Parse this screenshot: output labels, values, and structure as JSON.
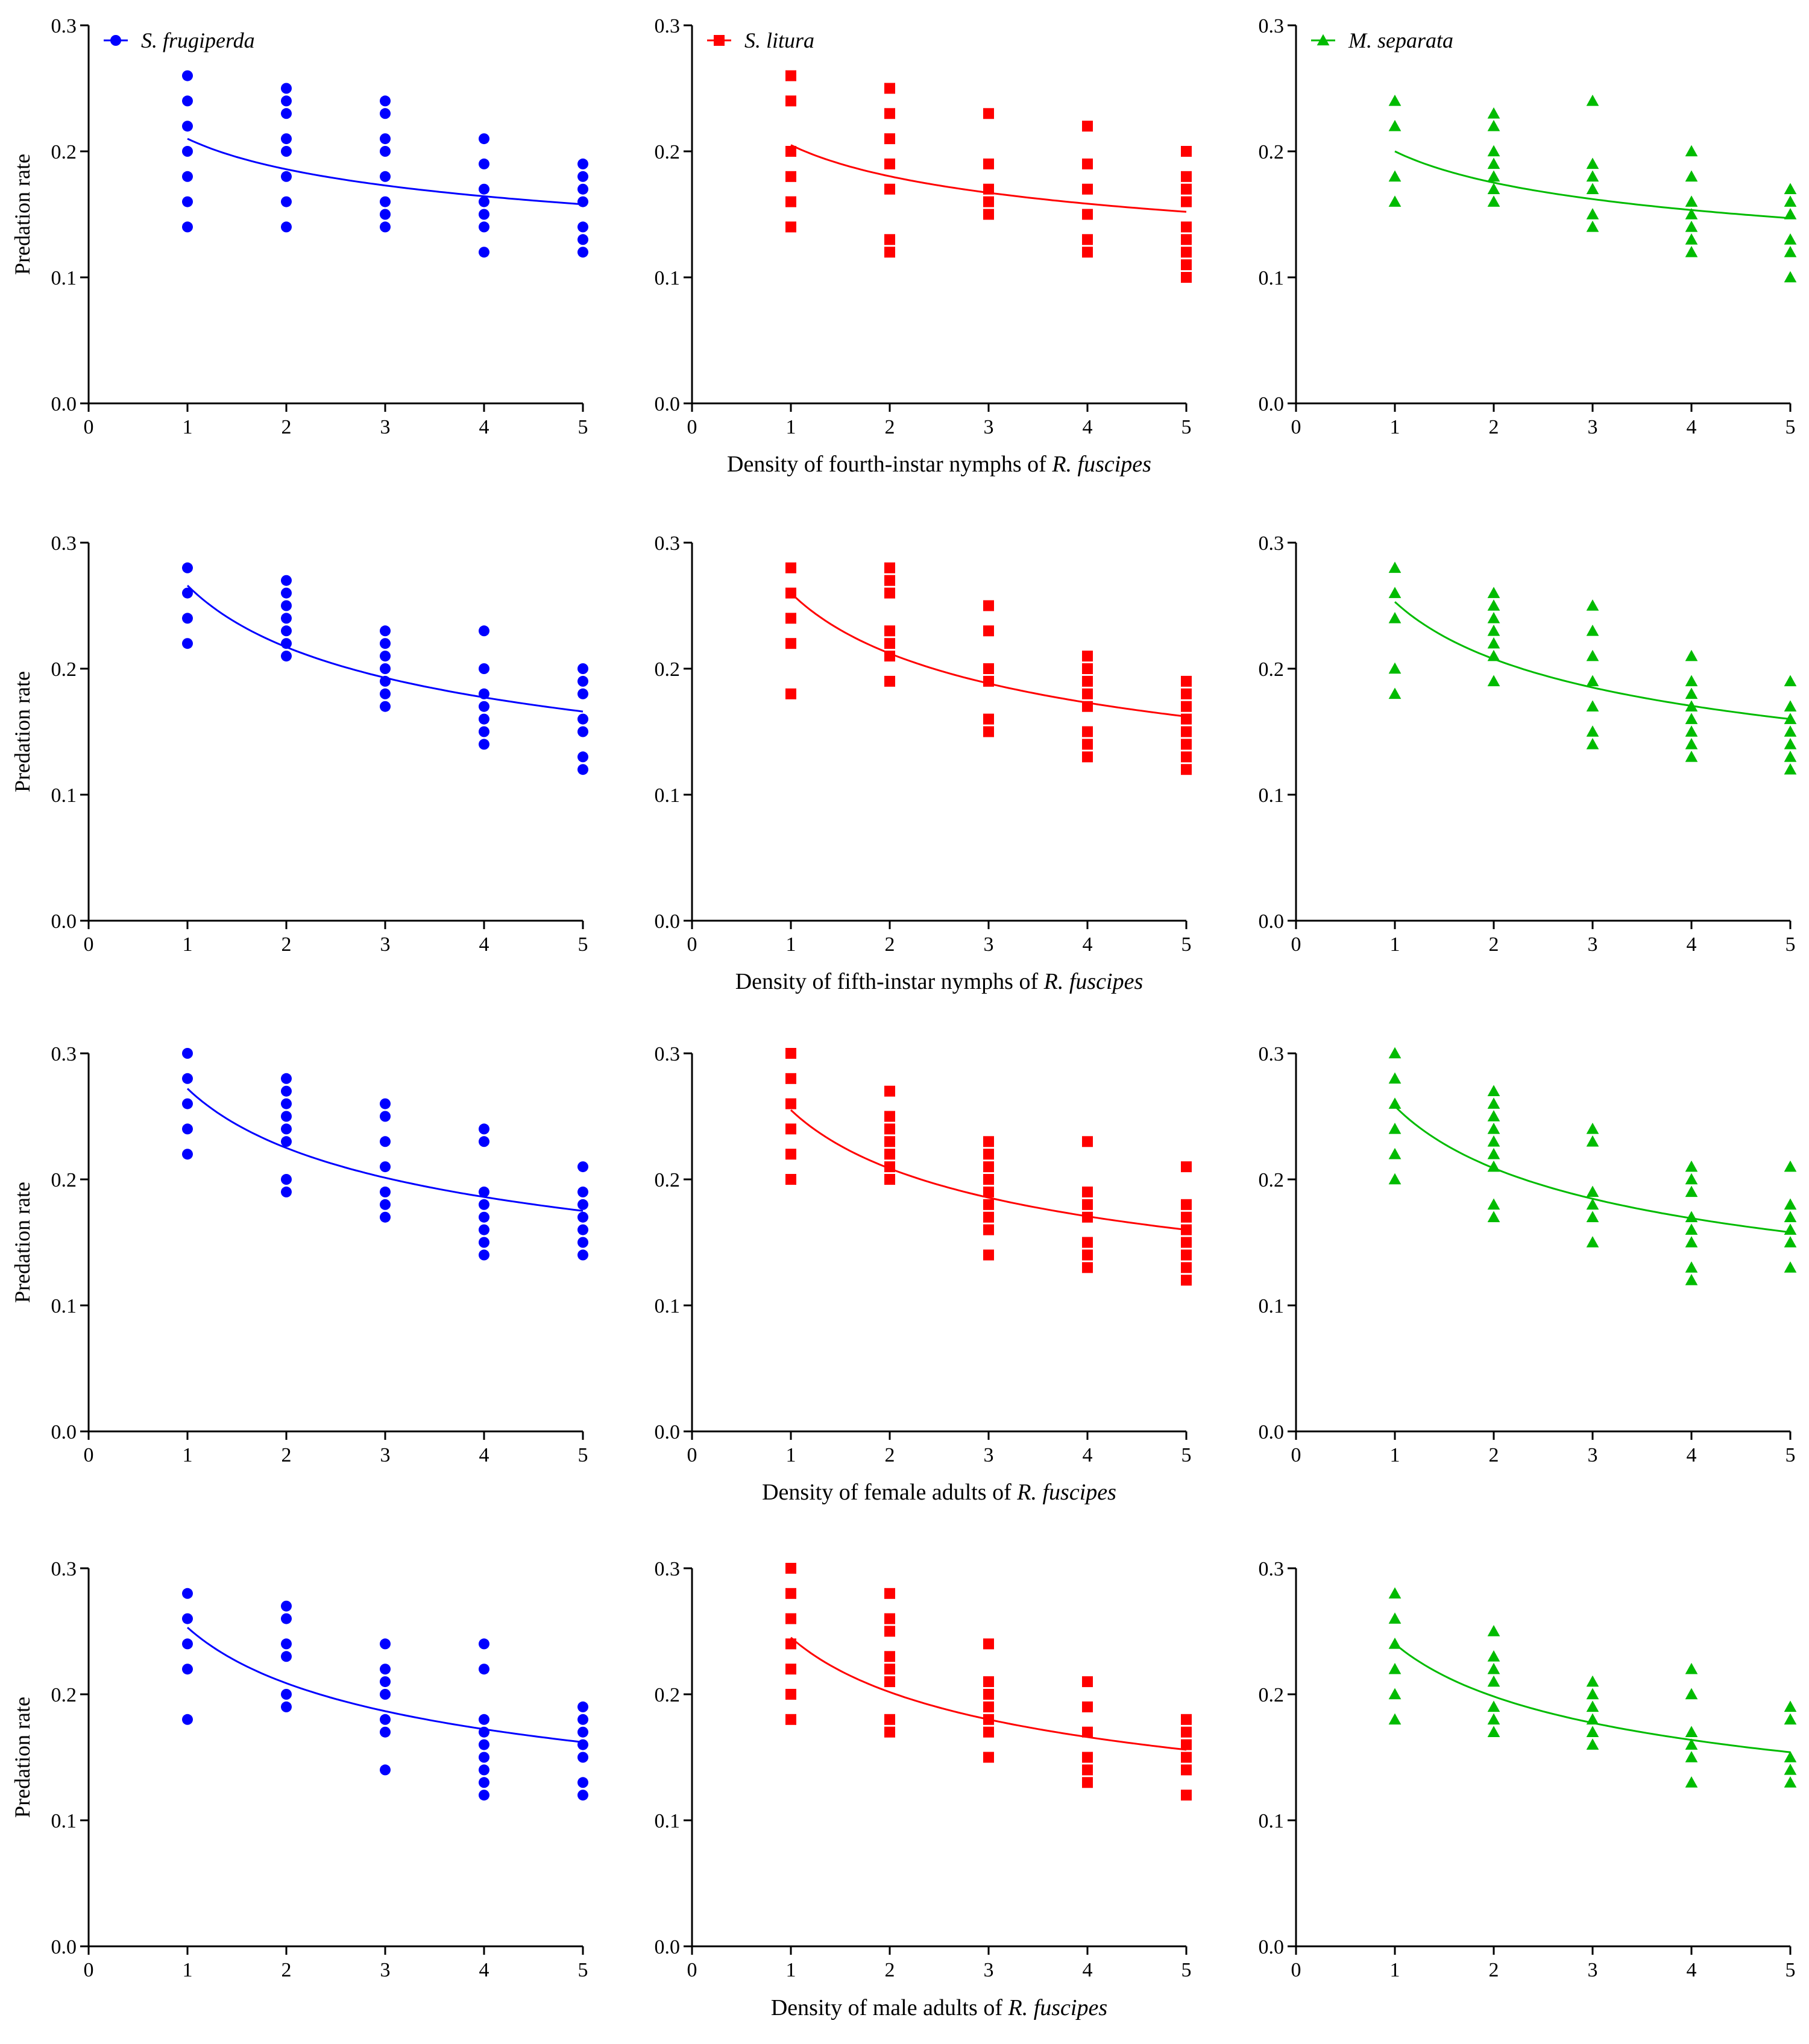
{
  "species": [
    {
      "name": "S. frugiperda",
      "color": "#0000ff",
      "marker": "circle"
    },
    {
      "name": "S. litura",
      "color": "#ff0000",
      "marker": "square"
    },
    {
      "name": "M. separata",
      "color": "#00bb00",
      "marker": "triangle"
    }
  ],
  "row_labels": [
    {
      "prefix": "Density of fourth-instar nymphs of ",
      "italic": "R. fuscipes"
    },
    {
      "prefix": "Density of fifth-instar nymphs of ",
      "italic": "R. fuscipes"
    },
    {
      "prefix": "Density of female adults of ",
      "italic": "R. fuscipes"
    },
    {
      "prefix": "Density of male adults of ",
      "italic": "R. fuscipes"
    }
  ],
  "chart_data": [
    {
      "type": "scatter",
      "row": 0,
      "col": 0,
      "series": "S. frugiperda",
      "ylabel": "Predation rate",
      "xlim": [
        0,
        5
      ],
      "ylim": [
        0,
        0.3
      ],
      "xticks": [
        "0",
        "1",
        "2",
        "3",
        "4",
        "5"
      ],
      "yticks": [
        "0.0",
        "0.1",
        "0.2",
        "0.3"
      ],
      "points": [
        [
          1,
          [
            0.26,
            0.24,
            0.22,
            0.2,
            0.18,
            0.16,
            0.14
          ]
        ],
        [
          2,
          [
            0.25,
            0.24,
            0.23,
            0.21,
            0.2,
            0.18,
            0.16,
            0.14
          ]
        ],
        [
          3,
          [
            0.24,
            0.23,
            0.21,
            0.2,
            0.18,
            0.16,
            0.15,
            0.14
          ]
        ],
        [
          4,
          [
            0.21,
            0.19,
            0.17,
            0.16,
            0.15,
            0.14,
            0.12
          ]
        ],
        [
          5,
          [
            0.19,
            0.18,
            0.17,
            0.16,
            0.14,
            0.13,
            0.12
          ]
        ]
      ],
      "curve": [
        0.21,
        0.158
      ]
    },
    {
      "type": "scatter",
      "row": 0,
      "col": 1,
      "series": "S. litura",
      "ylabel": "",
      "xlim": [
        0,
        5
      ],
      "ylim": [
        0,
        0.3
      ],
      "xticks": [
        "0",
        "1",
        "2",
        "3",
        "4",
        "5"
      ],
      "yticks": [
        "0.0",
        "0.1",
        "0.2",
        "0.3"
      ],
      "points": [
        [
          1,
          [
            0.26,
            0.24,
            0.2,
            0.18,
            0.16,
            0.14
          ]
        ],
        [
          2,
          [
            0.25,
            0.23,
            0.21,
            0.19,
            0.17,
            0.13,
            0.12
          ]
        ],
        [
          3,
          [
            0.23,
            0.19,
            0.17,
            0.16,
            0.15
          ]
        ],
        [
          4,
          [
            0.22,
            0.19,
            0.17,
            0.15,
            0.13,
            0.12
          ]
        ],
        [
          5,
          [
            0.2,
            0.18,
            0.17,
            0.16,
            0.14,
            0.13,
            0.12,
            0.11,
            0.1
          ]
        ]
      ],
      "curve": [
        0.205,
        0.152
      ]
    },
    {
      "type": "scatter",
      "row": 0,
      "col": 2,
      "series": "M. separata",
      "ylabel": "",
      "xlim": [
        0,
        5
      ],
      "ylim": [
        0,
        0.3
      ],
      "xticks": [
        "0",
        "1",
        "2",
        "3",
        "4",
        "5"
      ],
      "yticks": [
        "0.0",
        "0.1",
        "0.2",
        "0.3"
      ],
      "points": [
        [
          1,
          [
            0.24,
            0.22,
            0.18,
            0.16
          ]
        ],
        [
          2,
          [
            0.23,
            0.22,
            0.2,
            0.19,
            0.18,
            0.17,
            0.16
          ]
        ],
        [
          3,
          [
            0.24,
            0.19,
            0.18,
            0.17,
            0.15,
            0.14
          ]
        ],
        [
          4,
          [
            0.2,
            0.18,
            0.16,
            0.15,
            0.14,
            0.13,
            0.12
          ]
        ],
        [
          5,
          [
            0.17,
            0.16,
            0.15,
            0.13,
            0.12,
            0.1
          ]
        ]
      ],
      "curve": [
        0.2,
        0.147
      ]
    },
    {
      "type": "scatter",
      "row": 1,
      "col": 0,
      "series": "S. frugiperda",
      "ylabel": "Predation rate",
      "xlim": [
        0,
        5
      ],
      "ylim": [
        0,
        0.3
      ],
      "xticks": [
        "0",
        "1",
        "2",
        "3",
        "4",
        "5"
      ],
      "yticks": [
        "0.0",
        "0.1",
        "0.2",
        "0.3"
      ],
      "points": [
        [
          1,
          [
            0.28,
            0.26,
            0.24,
            0.22
          ]
        ],
        [
          2,
          [
            0.27,
            0.26,
            0.25,
            0.24,
            0.23,
            0.22,
            0.21
          ]
        ],
        [
          3,
          [
            0.23,
            0.22,
            0.21,
            0.2,
            0.19,
            0.18,
            0.17
          ]
        ],
        [
          4,
          [
            0.23,
            0.2,
            0.18,
            0.17,
            0.16,
            0.15,
            0.14
          ]
        ],
        [
          5,
          [
            0.2,
            0.19,
            0.18,
            0.16,
            0.15,
            0.13,
            0.12
          ]
        ]
      ],
      "curve": [
        0.266,
        0.166
      ]
    },
    {
      "type": "scatter",
      "row": 1,
      "col": 1,
      "series": "S. litura",
      "ylabel": "",
      "xlim": [
        0,
        5
      ],
      "ylim": [
        0,
        0.3
      ],
      "xticks": [
        "0",
        "1",
        "2",
        "3",
        "4",
        "5"
      ],
      "yticks": [
        "0.0",
        "0.1",
        "0.2",
        "0.3"
      ],
      "points": [
        [
          1,
          [
            0.28,
            0.26,
            0.24,
            0.22,
            0.18
          ]
        ],
        [
          2,
          [
            0.28,
            0.27,
            0.26,
            0.23,
            0.22,
            0.21,
            0.19
          ]
        ],
        [
          3,
          [
            0.25,
            0.23,
            0.2,
            0.19,
            0.16,
            0.15
          ]
        ],
        [
          4,
          [
            0.21,
            0.2,
            0.19,
            0.18,
            0.17,
            0.15,
            0.14,
            0.13
          ]
        ],
        [
          5,
          [
            0.19,
            0.18,
            0.17,
            0.16,
            0.15,
            0.14,
            0.13,
            0.12
          ]
        ]
      ],
      "curve": [
        0.26,
        0.162
      ]
    },
    {
      "type": "scatter",
      "row": 1,
      "col": 2,
      "series": "M. separata",
      "ylabel": "",
      "xlim": [
        0,
        5
      ],
      "ylim": [
        0,
        0.3
      ],
      "xticks": [
        "0",
        "1",
        "2",
        "3",
        "4",
        "5"
      ],
      "yticks": [
        "0.0",
        "0.1",
        "0.2",
        "0.3"
      ],
      "points": [
        [
          1,
          [
            0.28,
            0.26,
            0.24,
            0.2,
            0.18
          ]
        ],
        [
          2,
          [
            0.26,
            0.25,
            0.24,
            0.23,
            0.22,
            0.21,
            0.19
          ]
        ],
        [
          3,
          [
            0.25,
            0.23,
            0.21,
            0.19,
            0.17,
            0.15,
            0.14
          ]
        ],
        [
          4,
          [
            0.21,
            0.19,
            0.18,
            0.17,
            0.16,
            0.15,
            0.14,
            0.13
          ]
        ],
        [
          5,
          [
            0.19,
            0.17,
            0.16,
            0.15,
            0.14,
            0.13,
            0.12
          ]
        ]
      ],
      "curve": [
        0.253,
        0.16
      ]
    },
    {
      "type": "scatter",
      "row": 2,
      "col": 0,
      "series": "S. frugiperda",
      "ylabel": "Predation rate",
      "xlim": [
        0,
        5
      ],
      "ylim": [
        0,
        0.3
      ],
      "xticks": [
        "0",
        "1",
        "2",
        "3",
        "4",
        "5"
      ],
      "yticks": [
        "0.0",
        "0.1",
        "0.2",
        "0.3"
      ],
      "points": [
        [
          1,
          [
            0.3,
            0.28,
            0.26,
            0.24,
            0.22
          ]
        ],
        [
          2,
          [
            0.28,
            0.27,
            0.26,
            0.25,
            0.24,
            0.23,
            0.2,
            0.19
          ]
        ],
        [
          3,
          [
            0.26,
            0.25,
            0.23,
            0.21,
            0.19,
            0.18,
            0.17
          ]
        ],
        [
          4,
          [
            0.24,
            0.23,
            0.19,
            0.18,
            0.17,
            0.16,
            0.15,
            0.14
          ]
        ],
        [
          5,
          [
            0.21,
            0.19,
            0.18,
            0.17,
            0.16,
            0.15,
            0.14
          ]
        ]
      ],
      "curve": [
        0.272,
        0.175
      ]
    },
    {
      "type": "scatter",
      "row": 2,
      "col": 1,
      "series": "S. litura",
      "ylabel": "",
      "xlim": [
        0,
        5
      ],
      "ylim": [
        0,
        0.3
      ],
      "xticks": [
        "0",
        "1",
        "2",
        "3",
        "4",
        "5"
      ],
      "yticks": [
        "0.0",
        "0.1",
        "0.2",
        "0.3"
      ],
      "points": [
        [
          1,
          [
            0.3,
            0.28,
            0.26,
            0.24,
            0.22,
            0.2
          ]
        ],
        [
          2,
          [
            0.27,
            0.25,
            0.24,
            0.23,
            0.22,
            0.21,
            0.2
          ]
        ],
        [
          3,
          [
            0.23,
            0.22,
            0.21,
            0.2,
            0.19,
            0.18,
            0.17,
            0.16,
            0.14
          ]
        ],
        [
          4,
          [
            0.23,
            0.19,
            0.18,
            0.17,
            0.15,
            0.14,
            0.13
          ]
        ],
        [
          5,
          [
            0.21,
            0.18,
            0.17,
            0.16,
            0.15,
            0.14,
            0.13,
            0.12
          ]
        ]
      ],
      "curve": [
        0.255,
        0.16
      ]
    },
    {
      "type": "scatter",
      "row": 2,
      "col": 2,
      "series": "M. separata",
      "ylabel": "",
      "xlim": [
        0,
        5
      ],
      "ylim": [
        0,
        0.3
      ],
      "xticks": [
        "0",
        "1",
        "2",
        "3",
        "4",
        "5"
      ],
      "yticks": [
        "0.0",
        "0.1",
        "0.2",
        "0.3"
      ],
      "points": [
        [
          1,
          [
            0.3,
            0.28,
            0.26,
            0.24,
            0.22,
            0.2
          ]
        ],
        [
          2,
          [
            0.27,
            0.26,
            0.25,
            0.24,
            0.23,
            0.22,
            0.21,
            0.18,
            0.17
          ]
        ],
        [
          3,
          [
            0.24,
            0.23,
            0.19,
            0.18,
            0.17,
            0.15
          ]
        ],
        [
          4,
          [
            0.21,
            0.2,
            0.19,
            0.17,
            0.16,
            0.15,
            0.13,
            0.12
          ]
        ],
        [
          5,
          [
            0.21,
            0.18,
            0.17,
            0.16,
            0.15,
            0.13
          ]
        ]
      ],
      "curve": [
        0.258,
        0.158
      ]
    },
    {
      "type": "scatter",
      "row": 3,
      "col": 0,
      "series": "S. frugiperda",
      "ylabel": "Predation rate",
      "xlim": [
        0,
        5
      ],
      "ylim": [
        0,
        0.3
      ],
      "xticks": [
        "0",
        "1",
        "2",
        "3",
        "4",
        "5"
      ],
      "yticks": [
        "0.0",
        "0.1",
        "0.2",
        "0.3"
      ],
      "points": [
        [
          1,
          [
            0.28,
            0.26,
            0.24,
            0.22,
            0.18
          ]
        ],
        [
          2,
          [
            0.27,
            0.26,
            0.24,
            0.23,
            0.2,
            0.19
          ]
        ],
        [
          3,
          [
            0.24,
            0.22,
            0.21,
            0.2,
            0.18,
            0.17,
            0.14
          ]
        ],
        [
          4,
          [
            0.24,
            0.22,
            0.18,
            0.17,
            0.16,
            0.15,
            0.14,
            0.13,
            0.12
          ]
        ],
        [
          5,
          [
            0.19,
            0.18,
            0.17,
            0.16,
            0.15,
            0.13,
            0.12
          ]
        ]
      ],
      "curve": [
        0.253,
        0.162
      ]
    },
    {
      "type": "scatter",
      "row": 3,
      "col": 1,
      "series": "S. litura",
      "ylabel": "",
      "xlim": [
        0,
        5
      ],
      "ylim": [
        0,
        0.3
      ],
      "xticks": [
        "0",
        "1",
        "2",
        "3",
        "4",
        "5"
      ],
      "yticks": [
        "0.0",
        "0.1",
        "0.2",
        "0.3"
      ],
      "points": [
        [
          1,
          [
            0.3,
            0.28,
            0.26,
            0.24,
            0.22,
            0.2,
            0.18
          ]
        ],
        [
          2,
          [
            0.28,
            0.26,
            0.25,
            0.23,
            0.22,
            0.21,
            0.18,
            0.17
          ]
        ],
        [
          3,
          [
            0.24,
            0.21,
            0.2,
            0.19,
            0.18,
            0.17,
            0.15
          ]
        ],
        [
          4,
          [
            0.21,
            0.19,
            0.17,
            0.15,
            0.14,
            0.13
          ]
        ],
        [
          5,
          [
            0.18,
            0.17,
            0.16,
            0.15,
            0.14,
            0.12
          ]
        ]
      ],
      "curve": [
        0.245,
        0.156
      ]
    },
    {
      "type": "scatter",
      "row": 3,
      "col": 2,
      "series": "M. separata",
      "ylabel": "",
      "xlim": [
        0,
        5
      ],
      "ylim": [
        0,
        0.3
      ],
      "xticks": [
        "0",
        "1",
        "2",
        "3",
        "4",
        "5"
      ],
      "yticks": [
        "0.0",
        "0.1",
        "0.2",
        "0.3"
      ],
      "points": [
        [
          1,
          [
            0.28,
            0.26,
            0.24,
            0.22,
            0.2,
            0.18
          ]
        ],
        [
          2,
          [
            0.25,
            0.23,
            0.22,
            0.21,
            0.19,
            0.18,
            0.17
          ]
        ],
        [
          3,
          [
            0.21,
            0.2,
            0.19,
            0.18,
            0.17,
            0.16
          ]
        ],
        [
          4,
          [
            0.22,
            0.2,
            0.17,
            0.16,
            0.15,
            0.13
          ]
        ],
        [
          5,
          [
            0.19,
            0.18,
            0.15,
            0.14,
            0.13
          ]
        ]
      ],
      "curve": [
        0.24,
        0.154
      ]
    }
  ]
}
